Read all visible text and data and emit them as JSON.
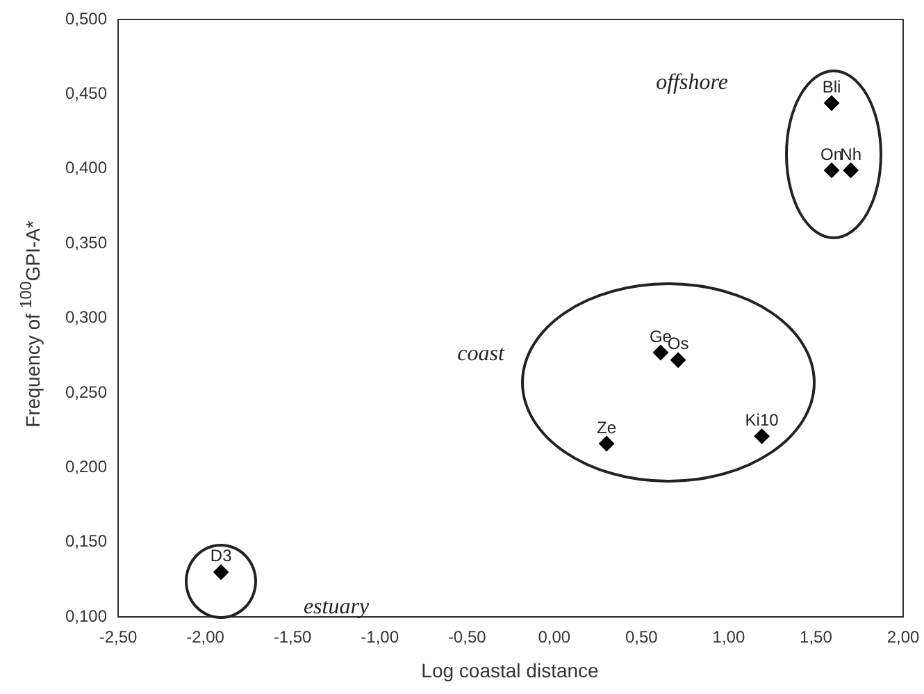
{
  "chart_data": {
    "type": "scatter",
    "xlabel": "Log coastal distance",
    "ylabel": "Frequency of $^{100}$GPI-A*",
    "x": [
      1.59,
      1.59,
      1.7,
      0.61,
      0.71,
      0.3,
      1.19,
      -1.91
    ],
    "values": [
      0.444,
      0.399,
      0.399,
      0.277,
      0.272,
      0.216,
      0.221,
      0.13
    ],
    "color": "#000000",
    "marker": "diamond",
    "grid": false,
    "legend": false,
    "xlim": [
      -2.5,
      2.0
    ],
    "ylim": [
      0.1,
      0.5
    ],
    "xticks": [
      {
        "value": -2.5,
        "label": "-2,50"
      },
      {
        "value": -2.0,
        "label": "-2,00"
      },
      {
        "value": -1.5,
        "label": "-1,50"
      },
      {
        "value": -1.0,
        "label": "-1,00"
      },
      {
        "value": -0.5,
        "label": "-0,50"
      },
      {
        "value": 0,
        "label": "0,00"
      },
      {
        "value": 0.5,
        "label": "0,50"
      },
      {
        "value": 1.0,
        "label": "1,00"
      },
      {
        "value": 1.5,
        "label": "1,50"
      },
      {
        "value": 2.0,
        "label": "2,00"
      }
    ],
    "yticks": [
      {
        "value": 0.1,
        "label": "0,100"
      },
      {
        "value": 0.15,
        "label": "0,150"
      },
      {
        "value": 0.2,
        "label": "0,200"
      },
      {
        "value": 0.25,
        "label": "0,250"
      },
      {
        "value": 0.3,
        "label": "0,300"
      },
      {
        "value": 0.35,
        "label": "0,350"
      },
      {
        "value": 0.4,
        "label": "0,400"
      },
      {
        "value": 0.45,
        "label": "0,450"
      },
      {
        "value": 0.5,
        "label": "0,500"
      }
    ],
    "annotations": [
      {
        "text": "Bli",
        "x": 1.59,
        "y": 0.444
      },
      {
        "text": "On",
        "x": 1.59,
        "y": 0.399
      },
      {
        "text": "Nh",
        "x": 1.7,
        "y": 0.399
      },
      {
        "text": "Ge",
        "x": 0.61,
        "y": 0.277
      },
      {
        "text": "Os",
        "x": 0.71,
        "y": 0.272
      },
      {
        "text": "Ze",
        "x": 0.3,
        "y": 0.216
      },
      {
        "text": "Ki10",
        "x": 1.19,
        "y": 0.221
      },
      {
        "text": "D3",
        "x": -1.91,
        "y": 0.13
      },
      "offshore",
      "coast",
      "estuary"
    ]
  }
}
